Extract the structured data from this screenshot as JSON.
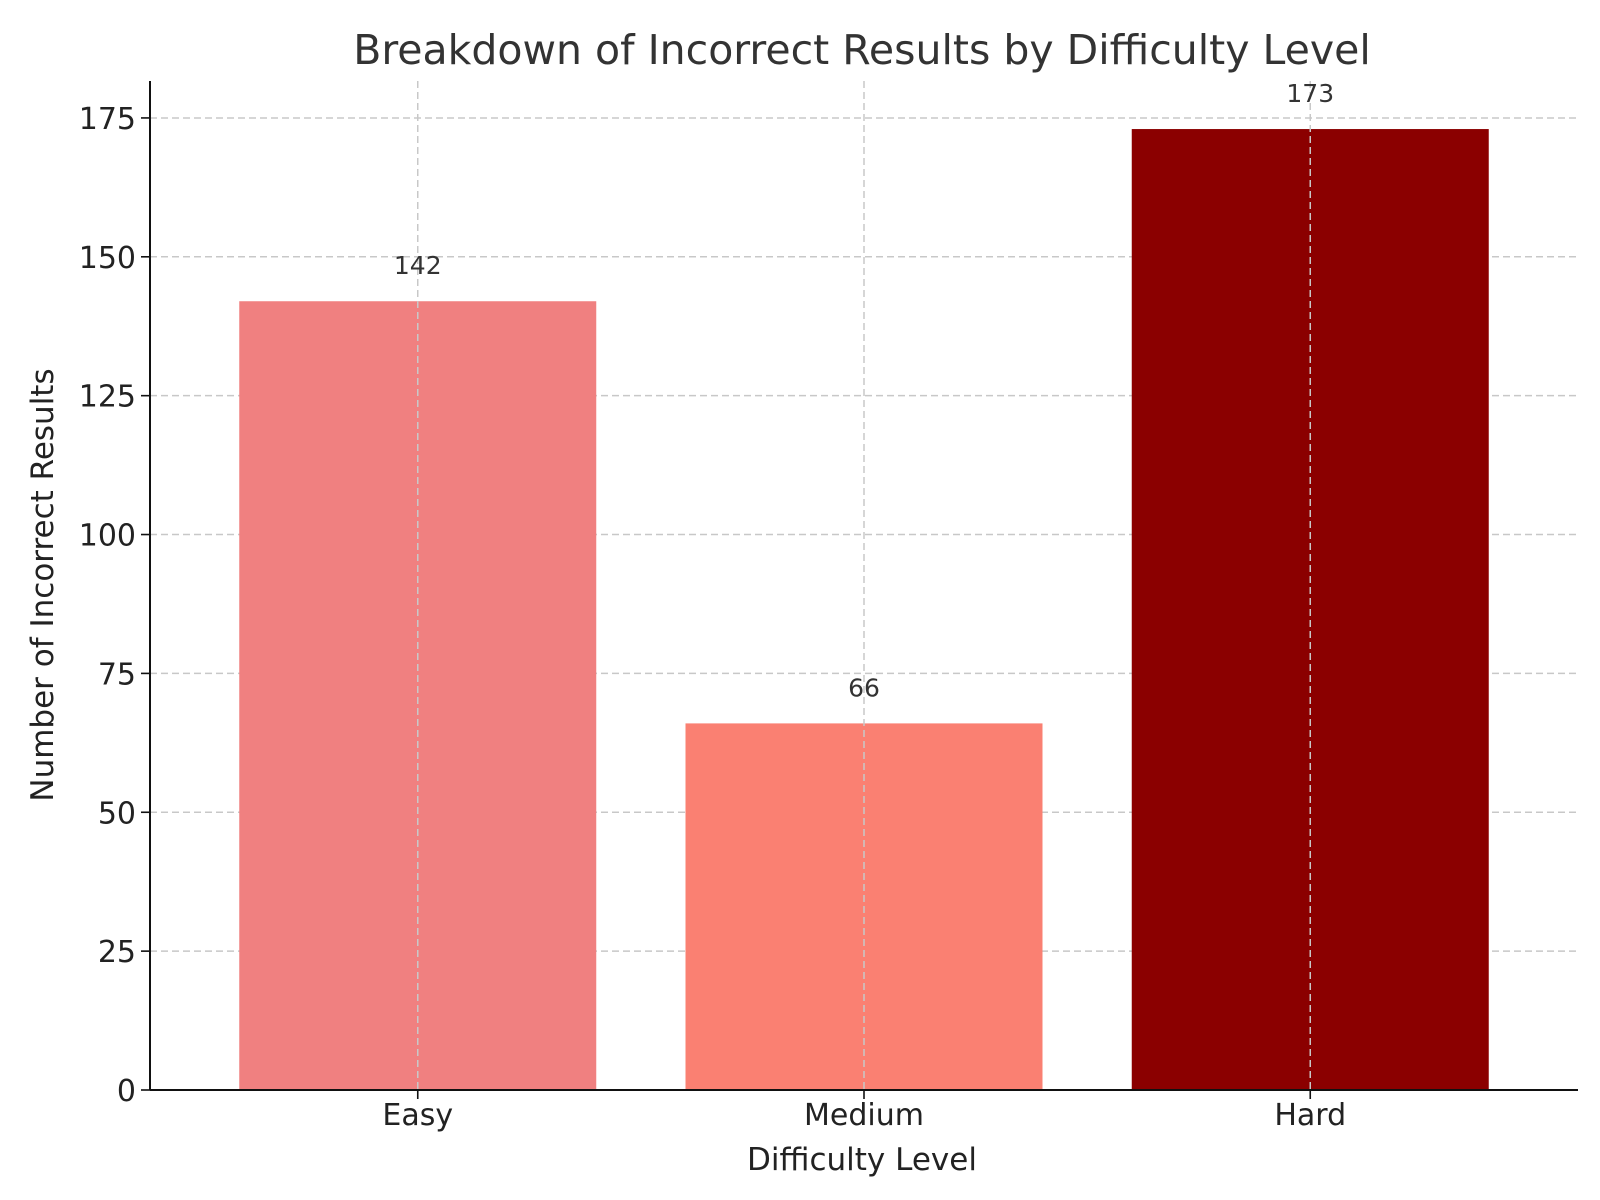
{
  "chart_data": {
    "type": "bar",
    "title": "Breakdown of Incorrect Results by Difficulty Level",
    "xlabel": "Difficulty Level",
    "ylabel": "Number of Incorrect Results",
    "categories": [
      "Easy",
      "Medium",
      "Hard"
    ],
    "values": [
      142,
      66,
      173
    ],
    "data_labels": [
      "142",
      "66",
      "173"
    ],
    "colors": [
      "#f08080",
      "#fa8072",
      "#8b0000"
    ],
    "ylim": [
      0,
      181.65
    ],
    "yticks": [
      0,
      25,
      50,
      75,
      100,
      125,
      150,
      175
    ],
    "grid": true
  }
}
